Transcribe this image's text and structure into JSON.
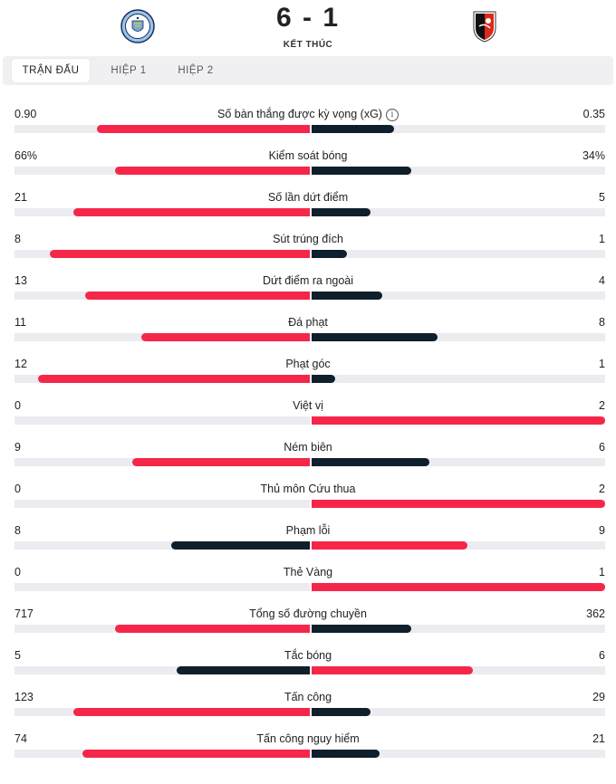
{
  "match": {
    "score": "6 - 1",
    "status": "KẾT THÚC",
    "home_logo": "man-city-crest-icon",
    "away_logo": "bournemouth-crest-icon"
  },
  "tabs": [
    {
      "label": "TRẬN ĐẤU",
      "active": true
    },
    {
      "label": "HIỆP 1",
      "active": false
    },
    {
      "label": "HIỆP 2",
      "active": false
    }
  ],
  "colors": {
    "winner": "#f5264a",
    "loser": "#0f1f2c",
    "track": "#ececf0"
  },
  "stats": [
    {
      "label": "Số bàn thắng được kỳ vọng (xG)",
      "home": "0.90",
      "away": "0.35",
      "home_frac": 0.72,
      "away_frac": 0.28,
      "info": true
    },
    {
      "label": "Kiểm soát bóng",
      "home": "66%",
      "away": "34%",
      "home_frac": 0.66,
      "away_frac": 0.34
    },
    {
      "label": "Số lần dứt điểm",
      "home": "21",
      "away": "5",
      "home_frac": 0.8,
      "away_frac": 0.2
    },
    {
      "label": "Sút trúng đích",
      "home": "8",
      "away": "1",
      "home_frac": 0.88,
      "away_frac": 0.12
    },
    {
      "label": "Dứt điểm ra ngoài",
      "home": "13",
      "away": "4",
      "home_frac": 0.76,
      "away_frac": 0.24
    },
    {
      "label": "Đá phạt",
      "home": "11",
      "away": "8",
      "home_frac": 0.57,
      "away_frac": 0.43
    },
    {
      "label": "Phạt góc",
      "home": "12",
      "away": "1",
      "home_frac": 0.92,
      "away_frac": 0.08
    },
    {
      "label": "Việt vị",
      "home": "0",
      "away": "2",
      "home_frac": 0,
      "away_frac": 1
    },
    {
      "label": "Ném biên",
      "home": "9",
      "away": "6",
      "home_frac": 0.6,
      "away_frac": 0.4
    },
    {
      "label": "Thủ môn Cứu thua",
      "home": "0",
      "away": "2",
      "home_frac": 0,
      "away_frac": 1
    },
    {
      "label": "Phạm lỗi",
      "home": "8",
      "away": "9",
      "home_frac": 0.47,
      "away_frac": 0.53
    },
    {
      "label": "Thẻ Vàng",
      "home": "0",
      "away": "1",
      "home_frac": 0,
      "away_frac": 1
    },
    {
      "label": "Tổng số đường chuyền",
      "home": "717",
      "away": "362",
      "home_frac": 0.66,
      "away_frac": 0.34
    },
    {
      "label": "Tắc bóng",
      "home": "5",
      "away": "6",
      "home_frac": 0.45,
      "away_frac": 0.55
    },
    {
      "label": "Tấn công",
      "home": "123",
      "away": "29",
      "home_frac": 0.8,
      "away_frac": 0.2
    },
    {
      "label": "Tấn công nguy hiểm",
      "home": "74",
      "away": "21",
      "home_frac": 0.77,
      "away_frac": 0.23
    }
  ]
}
